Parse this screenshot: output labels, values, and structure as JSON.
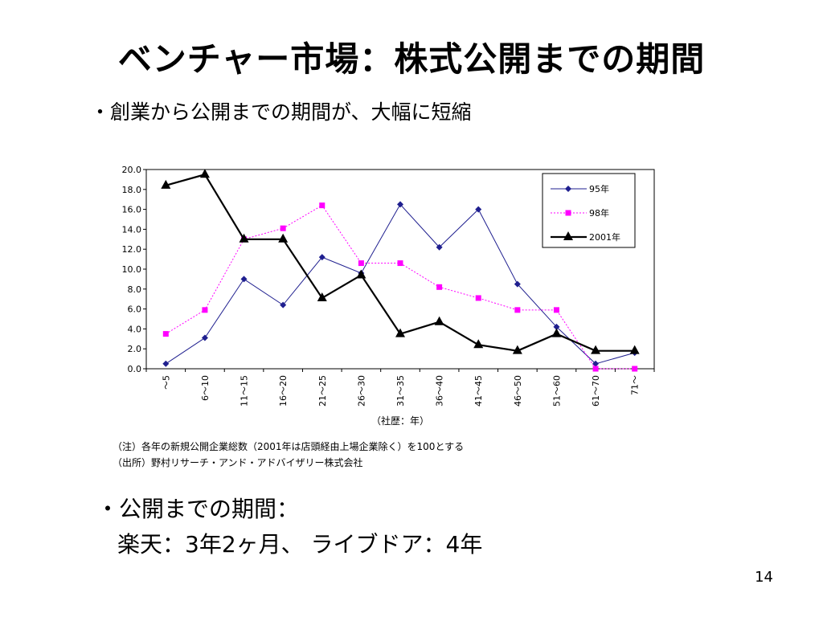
{
  "slide": {
    "title": "ベンチャー市場：株式公開までの期間",
    "subtitle": "・創業から公開までの期間が、大幅に短縮",
    "note1": "（注）各年の新規公開企業総数（2001年は店頭経由上場企業除く）を100とする",
    "note2": "（出所）野村リサーチ・アンド・アドバイザリー株式会社",
    "bottom_line1": "・公開までの期間：",
    "bottom_line2": "楽天：3年2ヶ月、 ライブドア：4年",
    "page_number": "14"
  },
  "chart_data": {
    "type": "line",
    "categories": [
      "～5",
      "6～10",
      "11～15",
      "16～20",
      "21～25",
      "26～30",
      "31～35",
      "36～40",
      "41～45",
      "46～50",
      "51～60",
      "61～70",
      "71～"
    ],
    "xlabel": "（社歴：年）",
    "ylabel": "",
    "ylim": [
      0,
      20
    ],
    "yticks": [
      "20.0",
      "18.0",
      "16.0",
      "14.0",
      "12.0",
      "10.0",
      "8.0",
      "6.0",
      "4.0",
      "2.0",
      "0.0"
    ],
    "legend_position": "top-right",
    "series": [
      {
        "name": "95年",
        "color": "#1f1f8f",
        "marker": "diamond",
        "dash": "solid",
        "values": [
          0.5,
          3.1,
          9.0,
          6.4,
          11.2,
          9.6,
          16.5,
          12.2,
          16.0,
          8.5,
          4.2,
          0.5,
          1.6
        ]
      },
      {
        "name": "98年",
        "color": "#ff00ff",
        "marker": "square",
        "dash": "dotted",
        "values": [
          3.5,
          5.9,
          13.0,
          14.1,
          16.4,
          10.6,
          10.6,
          8.2,
          7.1,
          5.9,
          5.9,
          0.0,
          0.0
        ]
      },
      {
        "name": "2001年",
        "color": "#000000",
        "marker": "triangle",
        "dash": "solid",
        "values": [
          18.4,
          19.5,
          13.0,
          13.0,
          7.1,
          9.4,
          3.5,
          4.7,
          2.4,
          1.8,
          3.5,
          1.8,
          1.8
        ]
      }
    ]
  }
}
